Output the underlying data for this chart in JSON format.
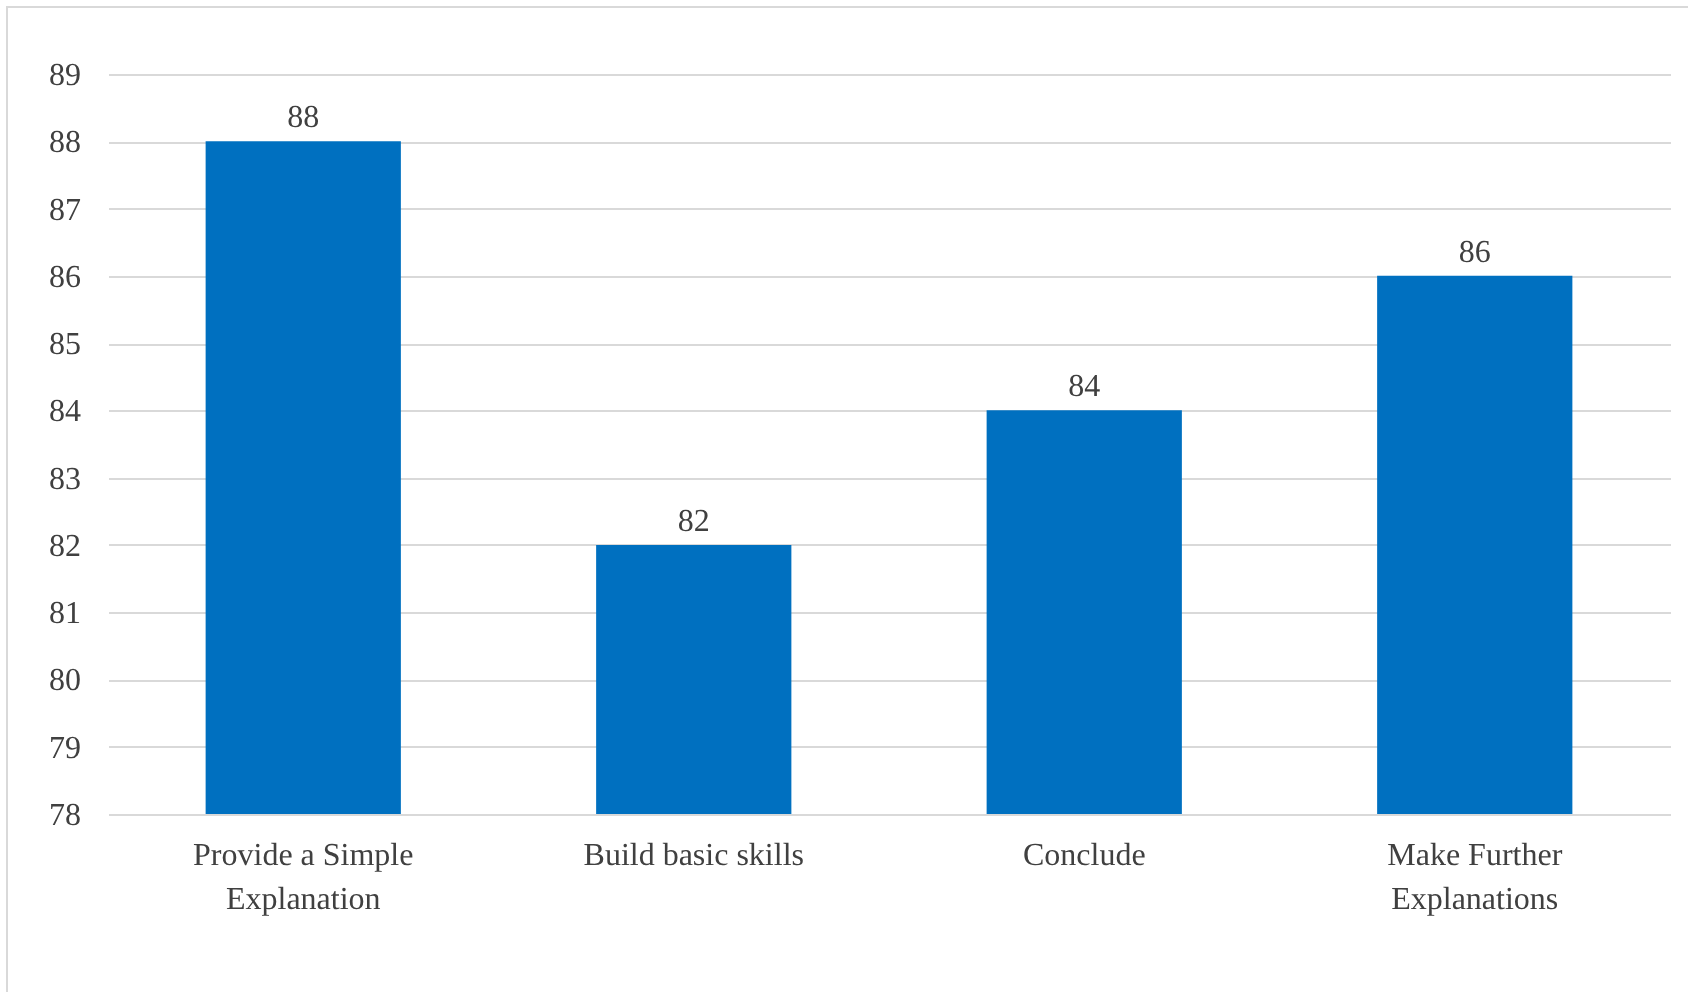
{
  "chart_data": {
    "type": "bar",
    "categories": [
      "Provide a Simple Explanation",
      "Build basic skills",
      "Conclude",
      "Make Further Explanations"
    ],
    "values": [
      88,
      82,
      84,
      86
    ],
    "color": "#0070c0",
    "ylim": [
      78,
      89
    ],
    "yticks": [
      78,
      79,
      80,
      81,
      82,
      83,
      84,
      85,
      86,
      87,
      88,
      89
    ],
    "grid": "y",
    "data_labels": true
  }
}
